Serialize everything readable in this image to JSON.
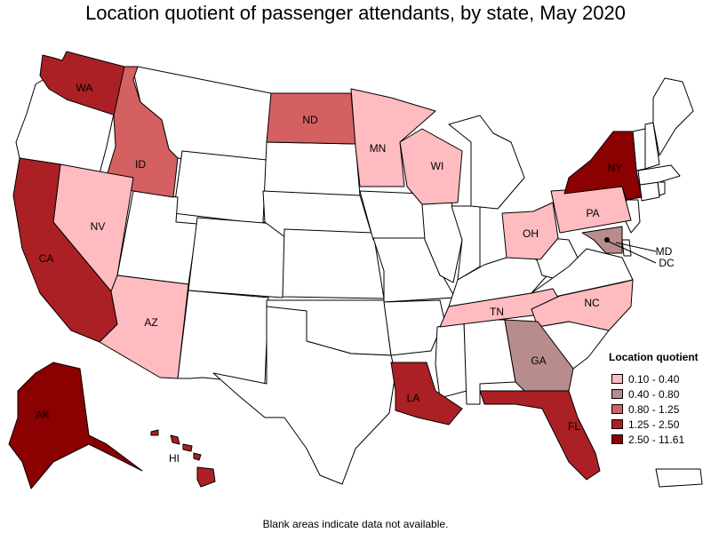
{
  "title": "Location quotient of passenger attendants, by state, May 2020",
  "footnote": "Blank areas indicate data not available.",
  "legend": {
    "title": "Location quotient",
    "items": [
      {
        "label": "0.10 - 0.40",
        "color": "#ffbcc0"
      },
      {
        "label": "0.40 - 0.80",
        "color": "#b88c8c"
      },
      {
        "label": "0.80 - 1.25",
        "color": "#d46061"
      },
      {
        "label": "1.25 - 2.50",
        "color": "#ab2024"
      },
      {
        "label": "2.50 - 11.61",
        "color": "#8b0000"
      }
    ]
  },
  "state_labels": {
    "WA": "WA",
    "ID": "ID",
    "ND": "ND",
    "MN": "MN",
    "WI": "WI",
    "NY": "NY",
    "NV": "NV",
    "CA": "CA",
    "AZ": "AZ",
    "OH": "OH",
    "PA": "PA",
    "MD": "MD",
    "DC": "DC",
    "TN": "TN",
    "NC": "NC",
    "GA": "GA",
    "LA": "LA",
    "FL": "FL",
    "AK": "AK",
    "HI": "HI"
  },
  "chart_data": {
    "type": "choropleth",
    "title": "Location quotient of passenger attendants, by state, May 2020",
    "legend_title": "Location quotient",
    "legend_placement": "bottom-right",
    "bins": [
      "0.10 - 0.40",
      "0.40 - 0.80",
      "0.80 - 1.25",
      "1.25 - 2.50",
      "2.50 - 11.61"
    ],
    "states": [
      {
        "state": "WA",
        "bin": "1.25 - 2.50"
      },
      {
        "state": "ID",
        "bin": "0.80 - 1.25"
      },
      {
        "state": "ND",
        "bin": "0.80 - 1.25"
      },
      {
        "state": "MN",
        "bin": "0.10 - 0.40"
      },
      {
        "state": "WI",
        "bin": "0.10 - 0.40"
      },
      {
        "state": "NY",
        "bin": "2.50 - 11.61"
      },
      {
        "state": "NV",
        "bin": "0.10 - 0.40"
      },
      {
        "state": "CA",
        "bin": "1.25 - 2.50"
      },
      {
        "state": "AZ",
        "bin": "0.10 - 0.40"
      },
      {
        "state": "OH",
        "bin": "0.10 - 0.40"
      },
      {
        "state": "PA",
        "bin": "0.10 - 0.40"
      },
      {
        "state": "MD",
        "bin": "0.40 - 0.80"
      },
      {
        "state": "DC",
        "bin": "2.50 - 11.61"
      },
      {
        "state": "TN",
        "bin": "0.10 - 0.40"
      },
      {
        "state": "NC",
        "bin": "0.10 - 0.40"
      },
      {
        "state": "GA",
        "bin": "0.40 - 0.80"
      },
      {
        "state": "LA",
        "bin": "1.25 - 2.50"
      },
      {
        "state": "FL",
        "bin": "1.25 - 2.50"
      },
      {
        "state": "AK",
        "bin": "2.50 - 11.61"
      },
      {
        "state": "HI",
        "bin": "1.25 - 2.50"
      }
    ]
  }
}
